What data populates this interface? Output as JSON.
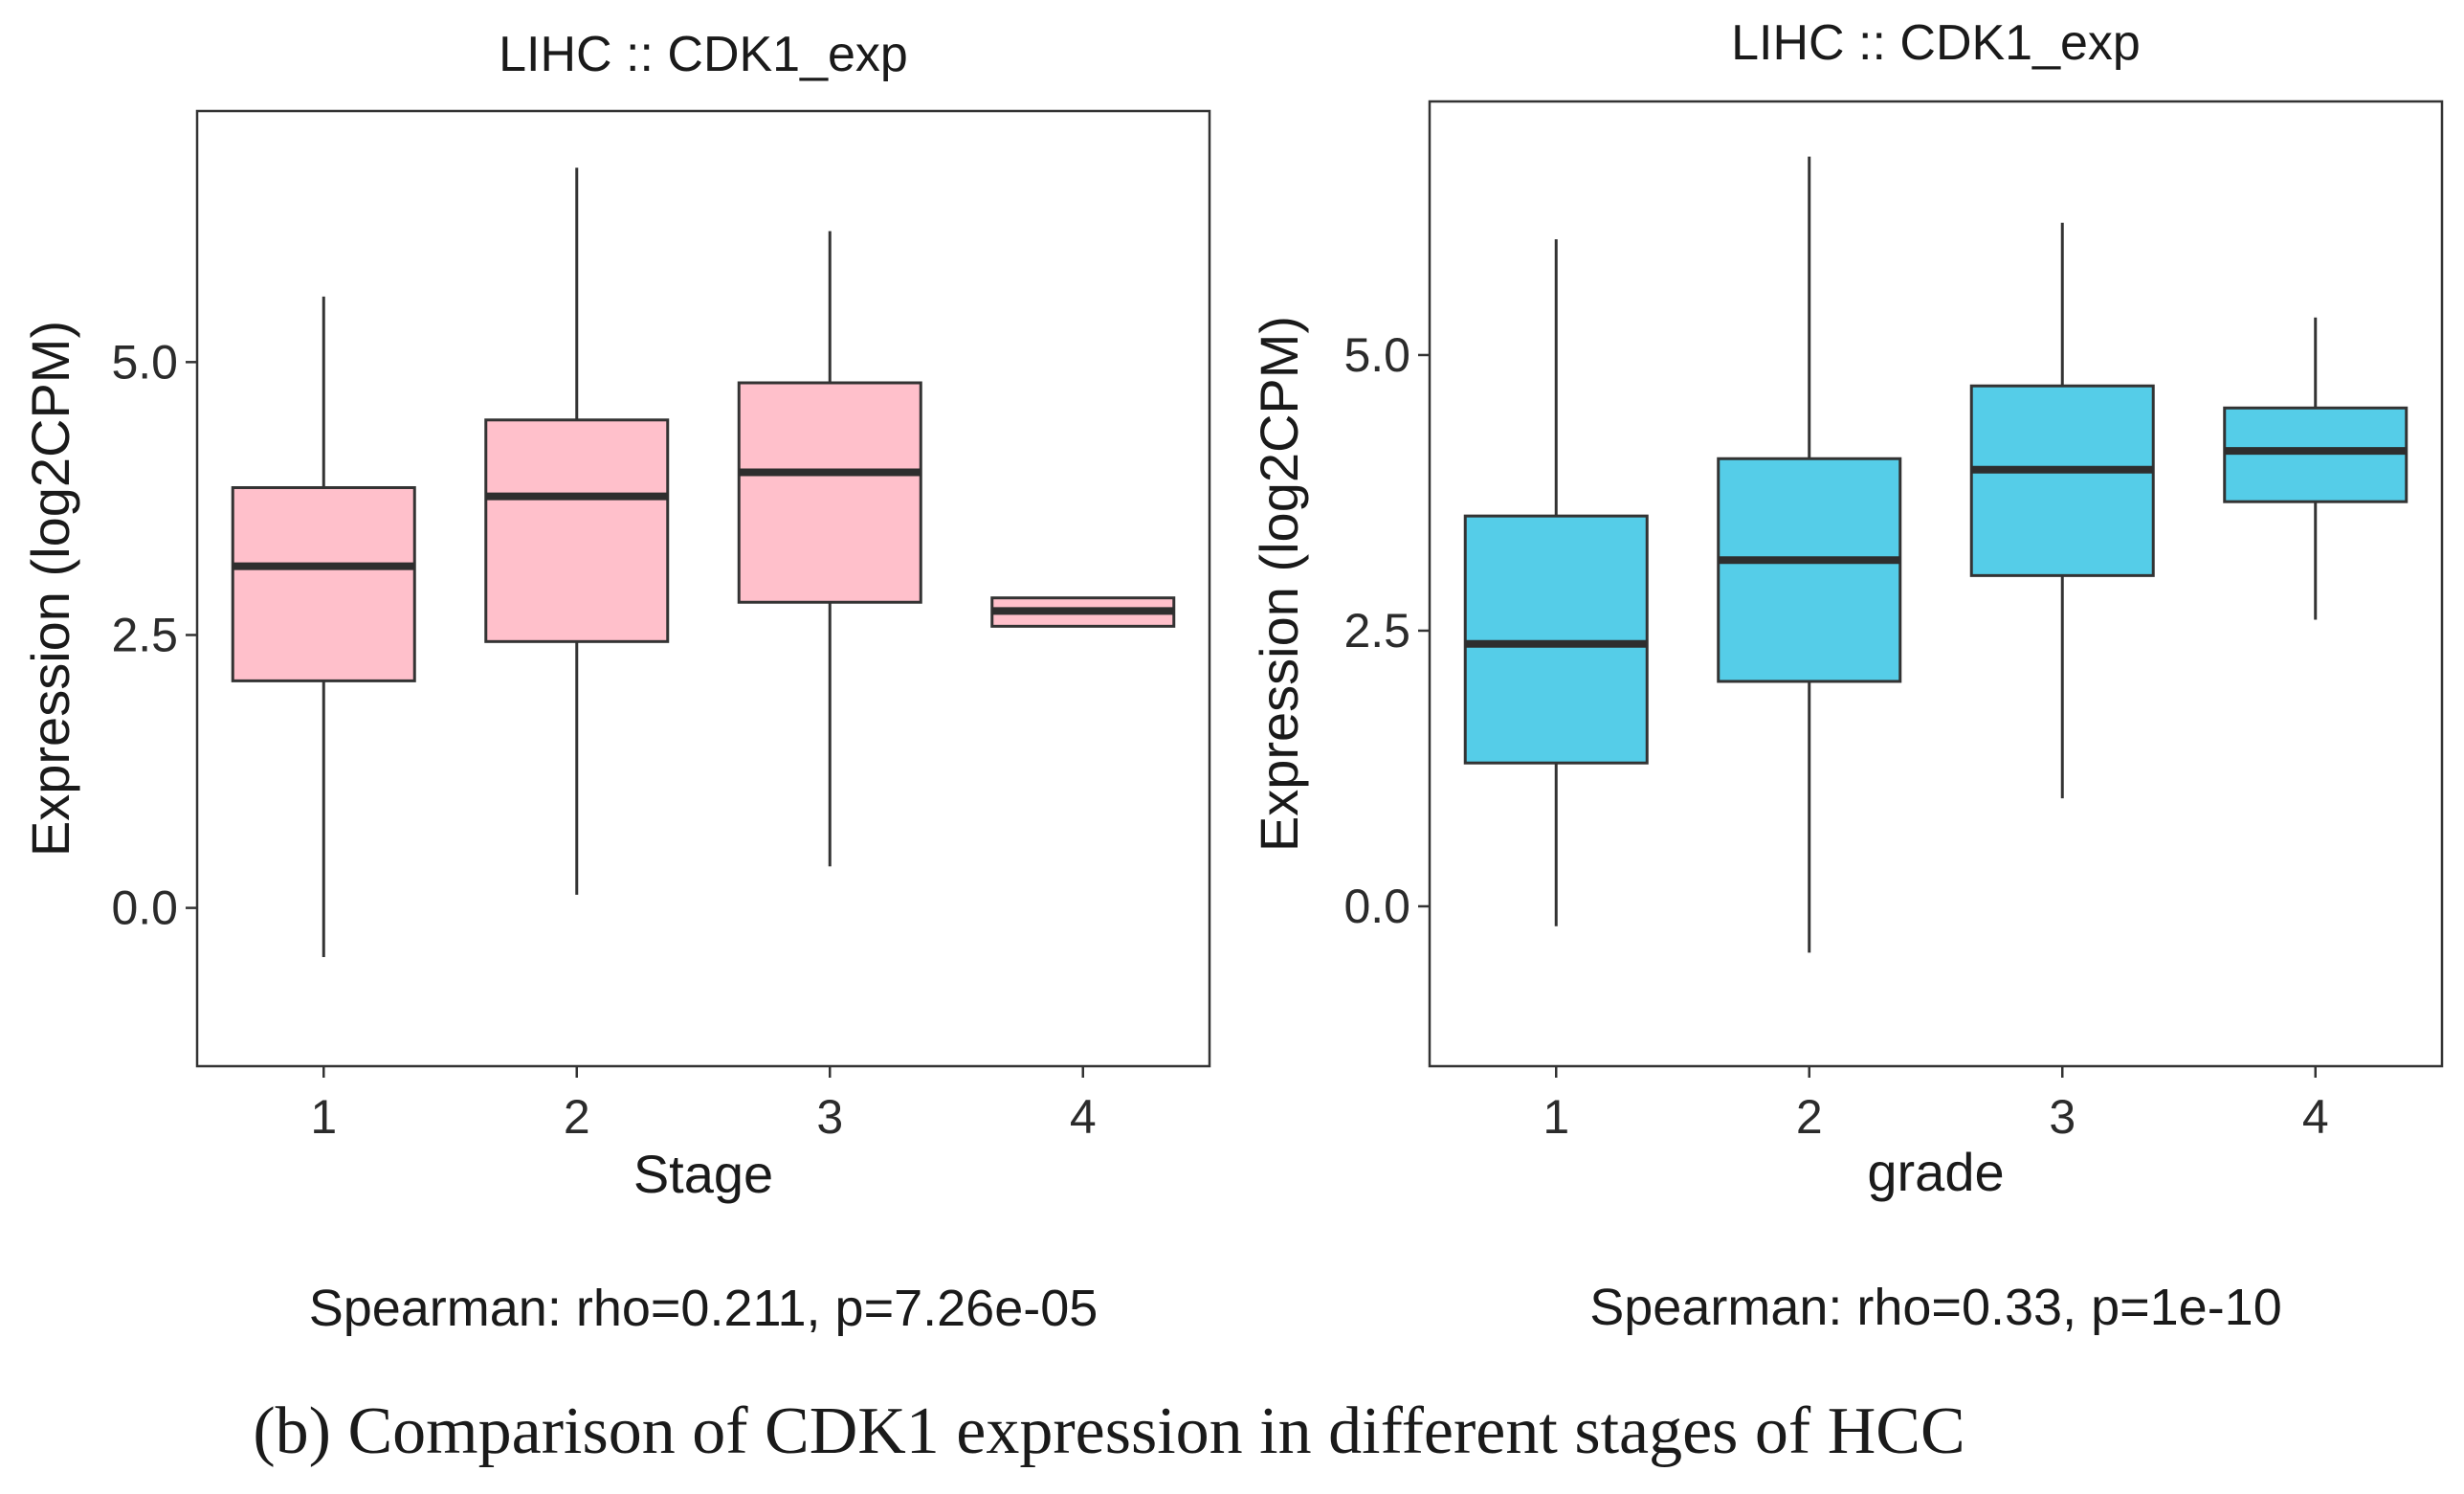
{
  "caption": "(b) Comparison of CDK1 expression in different stages of HCC",
  "chart_data": [
    {
      "type": "boxplot",
      "title": "LIHC  ::  CDK1_exp",
      "xlabel": "Stage",
      "ylabel": "Expression (log2CPM)",
      "ylim": [
        -1.45,
        7.3
      ],
      "yticks": [
        0.0,
        2.5,
        5.0
      ],
      "ytick_labels": [
        "0.0",
        "2.5",
        "5.0"
      ],
      "categories": [
        "1",
        "2",
        "3",
        "4"
      ],
      "fill_color": "#ffc0cb",
      "boxes": [
        {
          "category": "1",
          "whisker_low": -0.45,
          "q1": 2.08,
          "median": 3.13,
          "q3": 3.85,
          "whisker_high": 5.6
        },
        {
          "category": "2",
          "whisker_low": 0.12,
          "q1": 2.44,
          "median": 3.77,
          "q3": 4.47,
          "whisker_high": 6.78
        },
        {
          "category": "3",
          "whisker_low": 0.38,
          "q1": 2.8,
          "median": 3.99,
          "q3": 4.81,
          "whisker_high": 6.2
        },
        {
          "category": "4",
          "whisker_low": 2.58,
          "q1": 2.58,
          "median": 2.72,
          "q3": 2.84,
          "whisker_high": 2.84
        }
      ],
      "stat_text": "Spearman: rho=0.211, p=7.26e-05"
    },
    {
      "type": "boxplot",
      "title": "LIHC  ::  CDK1_exp",
      "xlabel": "grade",
      "ylabel": "Expression (log2CPM)",
      "ylim": [
        -1.45,
        7.3
      ],
      "yticks": [
        0.0,
        2.5,
        5.0
      ],
      "ytick_labels": [
        "0.0",
        "2.5",
        "5.0"
      ],
      "categories": [
        "1",
        "2",
        "3",
        "4"
      ],
      "fill_color": "#55cde8",
      "boxes": [
        {
          "category": "1",
          "whisker_low": -0.18,
          "q1": 1.3,
          "median": 2.38,
          "q3": 3.54,
          "whisker_high": 6.05
        },
        {
          "category": "2",
          "whisker_low": -0.42,
          "q1": 2.04,
          "median": 3.14,
          "q3": 4.06,
          "whisker_high": 6.8
        },
        {
          "category": "3",
          "whisker_low": 0.98,
          "q1": 3.0,
          "median": 3.96,
          "q3": 4.72,
          "whisker_high": 6.2
        },
        {
          "category": "4",
          "whisker_low": 2.6,
          "q1": 3.67,
          "median": 4.13,
          "q3": 4.52,
          "whisker_high": 5.34
        }
      ],
      "stat_text": "Spearman: rho=0.33, p=1e-10"
    }
  ]
}
